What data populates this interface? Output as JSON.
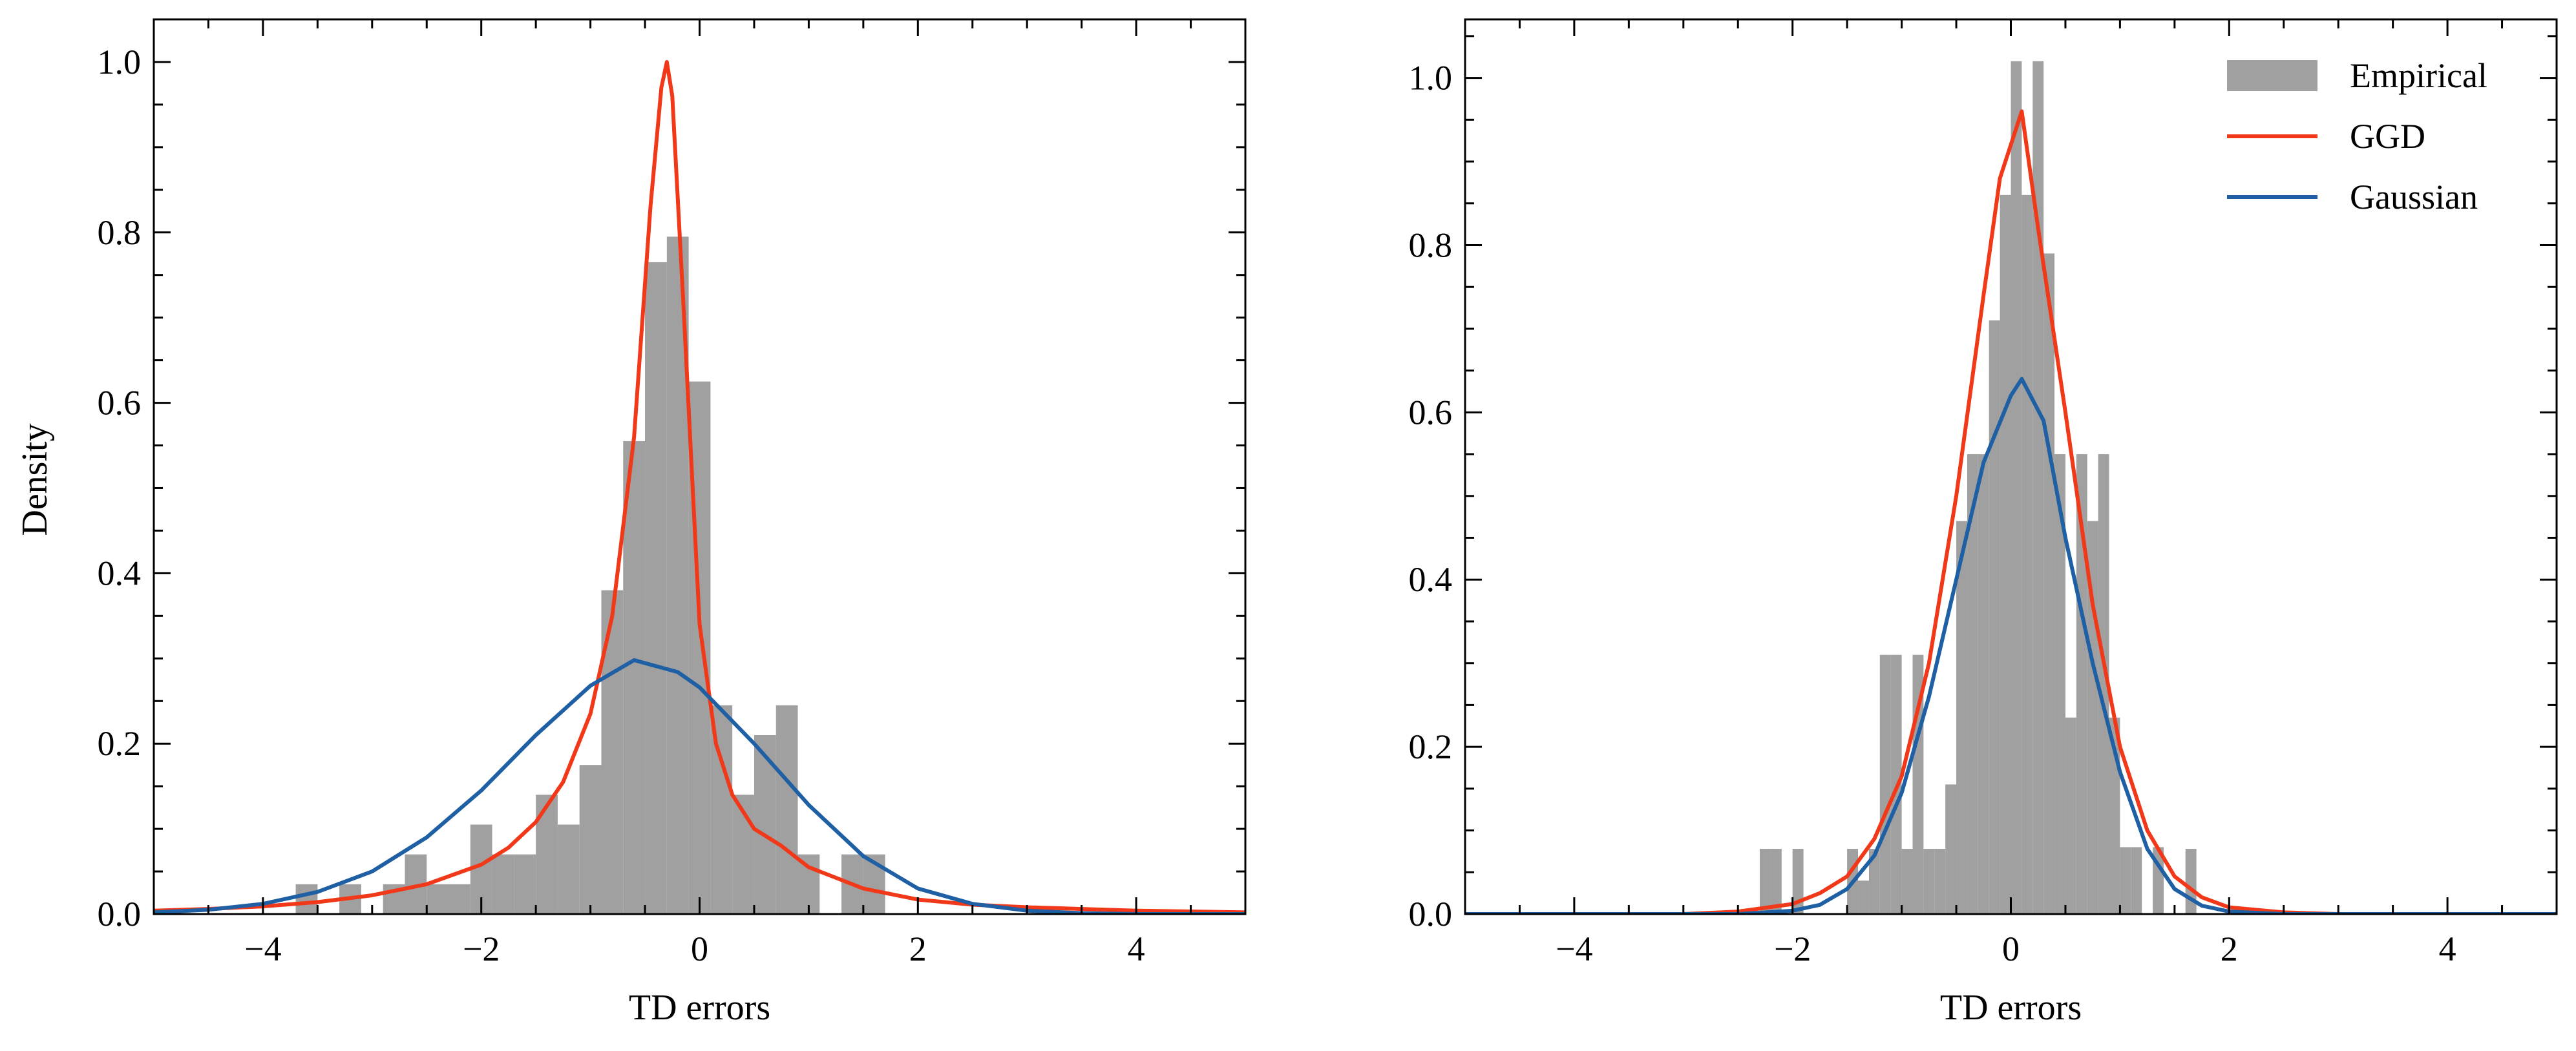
{
  "colors": {
    "empirical": "#a0a0a0",
    "ggd": "#f1391a",
    "gaussian": "#1f5fa3",
    "axis": "#000000"
  },
  "chart_data": [
    {
      "type": "histogram+line",
      "panel": "left",
      "title": "",
      "xlabel": "TD errors",
      "ylabel": "Density",
      "xlim": [
        -5,
        5
      ],
      "ylim": [
        0,
        1.05
      ],
      "x_ticks": [
        -4,
        -2,
        0,
        2,
        4
      ],
      "x_tick_labels": [
        "−4",
        "−2",
        "0",
        "2",
        "4"
      ],
      "y_ticks": [
        0.0,
        0.2,
        0.4,
        0.6,
        0.8,
        1.0
      ],
      "y_tick_labels": [
        "0.0",
        "0.2",
        "0.4",
        "0.6",
        "0.8",
        "1.0"
      ],
      "grid": false,
      "legend": null,
      "histogram": {
        "name": "Empirical",
        "bin_edges": [
          -3.7,
          -3.5,
          -3.3,
          -3.1,
          -2.9,
          -2.7,
          -2.5,
          -2.3,
          -2.1,
          -1.9,
          -1.7,
          -1.5,
          -1.3,
          -1.1,
          -0.9,
          -0.7,
          -0.5,
          -0.3,
          -0.1,
          0.1,
          0.3,
          0.5,
          0.7,
          0.9,
          1.1,
          1.3,
          1.5,
          1.7
        ],
        "densities": [
          0.035,
          0.0,
          0.035,
          0.0,
          0.035,
          0.07,
          0.035,
          0.035,
          0.105,
          0.07,
          0.07,
          0.14,
          0.105,
          0.175,
          0.38,
          0.555,
          0.765,
          0.795,
          0.625,
          0.245,
          0.14,
          0.21,
          0.245,
          0.07,
          0.0,
          0.07,
          0.07
        ]
      },
      "series": [
        {
          "name": "GGD",
          "x": [
            -5.0,
            -4.5,
            -4.0,
            -3.5,
            -3.0,
            -2.5,
            -2.0,
            -1.75,
            -1.5,
            -1.25,
            -1.0,
            -0.8,
            -0.6,
            -0.45,
            -0.35,
            -0.3,
            -0.25,
            -0.15,
            0.0,
            0.15,
            0.3,
            0.5,
            0.75,
            1.0,
            1.5,
            2.0,
            2.5,
            3.0,
            3.5,
            4.0,
            4.5,
            5.0
          ],
          "y": [
            0.004,
            0.006,
            0.009,
            0.014,
            0.022,
            0.035,
            0.058,
            0.078,
            0.108,
            0.155,
            0.235,
            0.35,
            0.56,
            0.83,
            0.97,
            1.0,
            0.96,
            0.72,
            0.34,
            0.2,
            0.14,
            0.1,
            0.08,
            0.055,
            0.03,
            0.017,
            0.011,
            0.008,
            0.006,
            0.004,
            0.003,
            0.002
          ]
        },
        {
          "name": "Gaussian",
          "x": [
            -5.0,
            -4.5,
            -4.0,
            -3.5,
            -3.0,
            -2.5,
            -2.0,
            -1.5,
            -1.0,
            -0.6,
            -0.2,
            0.0,
            0.5,
            1.0,
            1.5,
            2.0,
            2.5,
            3.0,
            3.5,
            4.0,
            4.5,
            5.0
          ],
          "y": [
            0.002,
            0.005,
            0.012,
            0.026,
            0.05,
            0.09,
            0.145,
            0.21,
            0.268,
            0.298,
            0.284,
            0.266,
            0.2,
            0.128,
            0.068,
            0.03,
            0.012,
            0.004,
            0.001,
            0.0,
            0.0,
            0.0
          ]
        }
      ]
    },
    {
      "type": "histogram+line",
      "panel": "right",
      "title": "",
      "xlabel": "TD errors",
      "ylabel": "",
      "xlim": [
        -5,
        5
      ],
      "ylim": [
        0,
        1.07
      ],
      "x_ticks": [
        -4,
        -2,
        0,
        2,
        4
      ],
      "x_tick_labels": [
        "−4",
        "−2",
        "0",
        "2",
        "4"
      ],
      "y_ticks": [
        0.0,
        0.2,
        0.4,
        0.6,
        0.8,
        1.0
      ],
      "y_tick_labels": [
        "0.0",
        "0.2",
        "0.4",
        "0.6",
        "0.8",
        "1.0"
      ],
      "grid": false,
      "legend": {
        "placement": "top-right",
        "entries": [
          "Empirical",
          "GGD",
          "Gaussian"
        ]
      },
      "histogram": {
        "name": "Empirical",
        "bin_edges": [
          -2.3,
          -2.2,
          -2.1,
          -2.0,
          -1.9,
          -1.8,
          -1.7,
          -1.6,
          -1.5,
          -1.4,
          -1.3,
          -1.2,
          -1.1,
          -1.0,
          -0.9,
          -0.8,
          -0.7,
          -0.6,
          -0.5,
          -0.4,
          -0.3,
          -0.2,
          -0.1,
          0.0,
          0.1,
          0.2,
          0.3,
          0.4,
          0.5,
          0.6,
          0.7,
          0.8,
          0.9,
          1.0,
          1.1,
          1.2,
          1.3,
          1.4,
          1.5,
          1.6,
          1.7
        ],
        "densities": [
          0.078,
          0.078,
          0.0,
          0.078,
          0.0,
          0.0,
          0.0,
          0.0,
          0.078,
          0.04,
          0.078,
          0.31,
          0.31,
          0.078,
          0.31,
          0.078,
          0.078,
          0.155,
          0.47,
          0.55,
          0.55,
          0.71,
          0.86,
          1.02,
          0.86,
          1.02,
          0.79,
          0.55,
          0.235,
          0.55,
          0.47,
          0.55,
          0.235,
          0.08,
          0.08,
          0.0,
          0.08,
          0.0,
          0.0,
          0.078
        ]
      },
      "series": [
        {
          "name": "GGD",
          "x": [
            -5.0,
            -3.0,
            -2.5,
            -2.0,
            -1.75,
            -1.5,
            -1.25,
            -1.0,
            -0.75,
            -0.5,
            -0.25,
            -0.1,
            0.1,
            0.25,
            0.5,
            0.75,
            1.0,
            1.25,
            1.5,
            1.75,
            2.0,
            2.5,
            3.0,
            5.0
          ],
          "y": [
            0.0,
            0.0,
            0.003,
            0.012,
            0.025,
            0.045,
            0.09,
            0.165,
            0.3,
            0.5,
            0.74,
            0.88,
            0.96,
            0.82,
            0.6,
            0.37,
            0.2,
            0.1,
            0.045,
            0.02,
            0.008,
            0.002,
            0.0,
            0.0
          ]
        },
        {
          "name": "Gaussian",
          "x": [
            -5.0,
            -2.5,
            -2.0,
            -1.75,
            -1.5,
            -1.25,
            -1.0,
            -0.75,
            -0.5,
            -0.25,
            0.0,
            0.1,
            0.3,
            0.5,
            0.75,
            1.0,
            1.25,
            1.5,
            1.75,
            2.0,
            2.5,
            5.0
          ],
          "y": [
            0.0,
            0.0,
            0.004,
            0.011,
            0.03,
            0.07,
            0.145,
            0.26,
            0.4,
            0.54,
            0.62,
            0.64,
            0.59,
            0.45,
            0.3,
            0.17,
            0.078,
            0.03,
            0.01,
            0.003,
            0.0,
            0.0
          ]
        }
      ]
    }
  ]
}
